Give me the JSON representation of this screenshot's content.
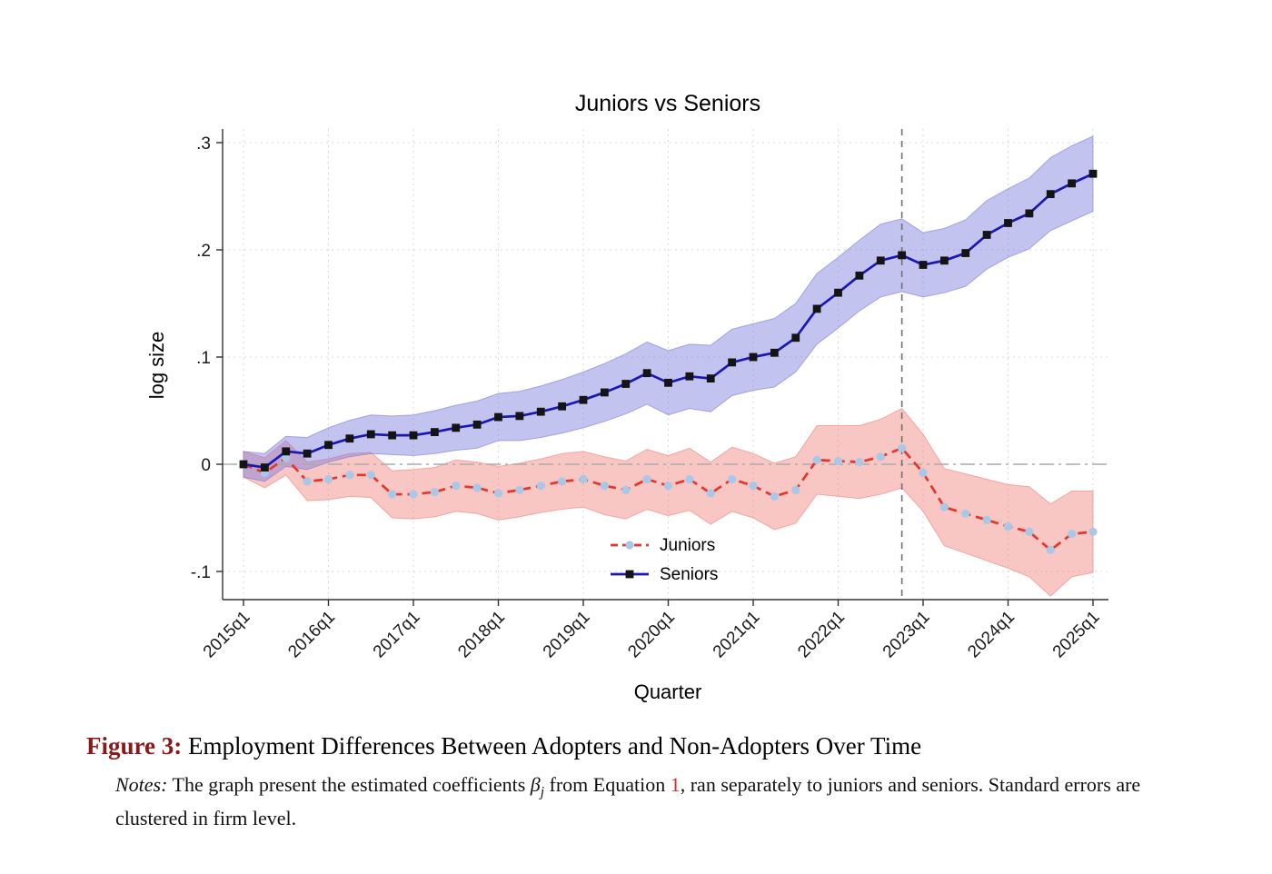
{
  "page": {
    "background": "#ffffff"
  },
  "chart_data": {
    "type": "line",
    "title": "Juniors vs Seniors",
    "xlabel": "Quarter",
    "ylabel": "log size",
    "ylim": [
      -0.12,
      0.31
    ],
    "grid": true,
    "legend_position": "inside-bottom-center",
    "y_ticks": [
      {
        "value": 0.3,
        "label": ".3"
      },
      {
        "value": 0.2,
        "label": ".2"
      },
      {
        "value": 0.1,
        "label": ".1"
      },
      {
        "value": 0.0,
        "label": "0"
      },
      {
        "value": -0.1,
        "label": "-.1"
      }
    ],
    "x_tick_every": 4,
    "x": [
      "2015q1",
      "2015q2",
      "2015q3",
      "2015q4",
      "2016q1",
      "2016q2",
      "2016q3",
      "2016q4",
      "2017q1",
      "2017q2",
      "2017q3",
      "2017q4",
      "2018q1",
      "2018q2",
      "2018q3",
      "2018q4",
      "2019q1",
      "2019q2",
      "2019q3",
      "2019q4",
      "2020q1",
      "2020q2",
      "2020q3",
      "2020q4",
      "2021q1",
      "2021q2",
      "2021q3",
      "2021q4",
      "2022q1",
      "2022q2",
      "2022q3",
      "2022q4",
      "2023q1",
      "2023q2",
      "2023q3",
      "2023q4",
      "2024q1",
      "2024q2",
      "2024q3",
      "2024q4",
      "2025q1"
    ],
    "reference": {
      "vline_x": "2022q4",
      "hline_y": 0
    },
    "series": [
      {
        "name": "Juniors",
        "color": "#e8352b",
        "line_style": "dashed",
        "marker": "circle",
        "marker_color": "#a9c7e6",
        "band_color": "#f0807a",
        "values": [
          0.0,
          -0.008,
          0.006,
          -0.016,
          -0.014,
          -0.01,
          -0.01,
          -0.028,
          -0.028,
          -0.026,
          -0.02,
          -0.022,
          -0.027,
          -0.024,
          -0.02,
          -0.016,
          -0.014,
          -0.02,
          -0.024,
          -0.014,
          -0.02,
          -0.014,
          -0.027,
          -0.014,
          -0.02,
          -0.03,
          -0.024,
          0.004,
          0.003,
          0.002,
          0.007,
          0.015,
          -0.008,
          -0.04,
          -0.046,
          -0.052,
          -0.058,
          -0.063,
          -0.08,
          -0.065,
          -0.063
        ],
        "ci": [
          0.012,
          0.014,
          0.016,
          0.018,
          0.019,
          0.02,
          0.021,
          0.022,
          0.023,
          0.023,
          0.024,
          0.024,
          0.025,
          0.025,
          0.025,
          0.026,
          0.026,
          0.027,
          0.027,
          0.028,
          0.028,
          0.029,
          0.029,
          0.03,
          0.03,
          0.031,
          0.031,
          0.032,
          0.033,
          0.034,
          0.035,
          0.037,
          0.036,
          0.036,
          0.037,
          0.038,
          0.039,
          0.042,
          0.043,
          0.04,
          0.038
        ]
      },
      {
        "name": "Seniors",
        "color": "#1a18b4",
        "line_style": "solid",
        "marker": "square",
        "marker_color": "#141414",
        "band_color": "#7b79dd",
        "values": [
          0.0,
          -0.003,
          0.012,
          0.01,
          0.018,
          0.024,
          0.028,
          0.027,
          0.027,
          0.03,
          0.034,
          0.037,
          0.044,
          0.045,
          0.049,
          0.054,
          0.06,
          0.067,
          0.075,
          0.085,
          0.076,
          0.082,
          0.08,
          0.095,
          0.1,
          0.104,
          0.118,
          0.145,
          0.16,
          0.176,
          0.19,
          0.195,
          0.186,
          0.19,
          0.197,
          0.214,
          0.225,
          0.234,
          0.252,
          0.262,
          0.271
        ],
        "ci": [
          0.012,
          0.013,
          0.014,
          0.015,
          0.016,
          0.017,
          0.018,
          0.018,
          0.019,
          0.02,
          0.021,
          0.022,
          0.022,
          0.023,
          0.024,
          0.025,
          0.026,
          0.027,
          0.028,
          0.029,
          0.03,
          0.03,
          0.031,
          0.031,
          0.031,
          0.032,
          0.032,
          0.033,
          0.033,
          0.033,
          0.034,
          0.034,
          0.03,
          0.03,
          0.031,
          0.032,
          0.032,
          0.033,
          0.034,
          0.035,
          0.035
        ]
      }
    ]
  },
  "caption": {
    "label": "Figure 3:",
    "title": " Employment Differences Between Adopters and Non-Adopters Over Time",
    "notes_label": "Notes:",
    "notes_part1": " The graph present the estimated coefficients ",
    "beta": "β",
    "beta_sub": "j",
    "notes_part2": " from Equation ",
    "equation_ref": "1",
    "notes_part3": ", ran separately to juniors and seniors. Standard errors are clustered in firm level."
  },
  "colors": {
    "figure_label": "#8a1a1a",
    "equation_ref": "#c4342b",
    "juniors_line": "#e8352b",
    "seniors_line": "#1a18b4",
    "zero_line": "#aaaaaa",
    "vline": "#707070",
    "gridline": "#d9d9d9"
  }
}
